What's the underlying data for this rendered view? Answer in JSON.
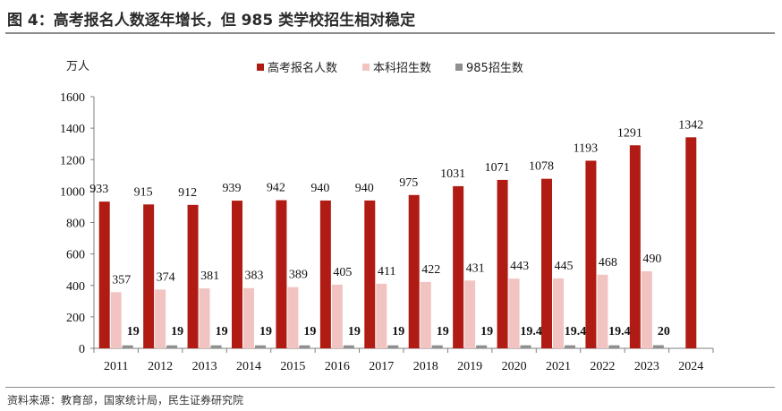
{
  "figure": {
    "title": "图 4：高考报名人数逐年增长，但 985 类学校招生相对稳定",
    "source": "资料来源：教育部，国家统计局，民生证券研究院"
  },
  "chart_data": {
    "type": "bar",
    "unit_label": "万人",
    "categories": [
      "2011",
      "2012",
      "2013",
      "2014",
      "2015",
      "2016",
      "2017",
      "2018",
      "2019",
      "2020",
      "2021",
      "2022",
      "2023",
      "2024"
    ],
    "series": [
      {
        "name": "高考报名人数",
        "color": "#b01c14",
        "values": [
          933,
          915,
          912,
          939,
          942,
          940,
          940,
          975,
          1031,
          1071,
          1078,
          1193,
          1291,
          1342
        ],
        "labels": [
          "933",
          "915",
          "912",
          "939",
          "942",
          "940",
          "940",
          "975",
          "1031",
          "1071",
          "1078",
          "1193",
          "1291",
          "1342"
        ]
      },
      {
        "name": "本科招生数",
        "color": "#f1c4c2",
        "values": [
          357,
          374,
          381,
          383,
          389,
          405,
          411,
          422,
          431,
          443,
          445,
          468,
          490,
          null
        ],
        "labels": [
          "357",
          "374",
          "381",
          "383",
          "389",
          "405",
          "411",
          "422",
          "431",
          "443",
          "445",
          "468",
          "490",
          ""
        ]
      },
      {
        "name": "985招生数",
        "color": "#8f8f8f",
        "values": [
          19,
          19,
          19,
          19,
          19,
          19,
          19,
          19,
          19,
          19.4,
          19.4,
          19.4,
          20,
          null
        ],
        "labels": [
          "19",
          "19",
          "19",
          "19",
          "19",
          "19",
          "19",
          "19",
          "19",
          "19.4",
          "19.4",
          "19.4",
          "20",
          ""
        ]
      }
    ],
    "yticks": [
      "0",
      "200",
      "400",
      "600",
      "800",
      "1000",
      "1200",
      "1400",
      "1600"
    ],
    "ylim": [
      0,
      1600
    ],
    "legend_position": "top-center",
    "grid": false
  }
}
